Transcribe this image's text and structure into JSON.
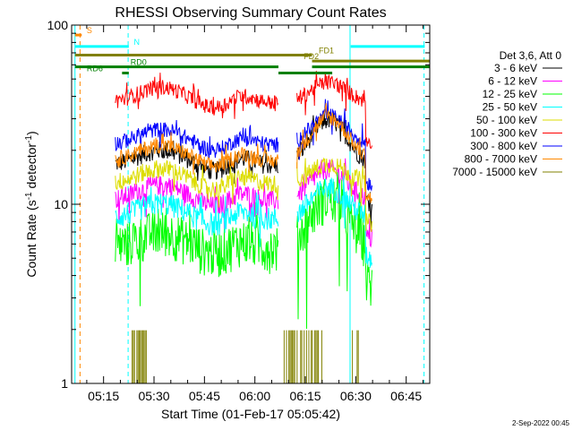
{
  "chart_data": {
    "type": "line",
    "title": "RHESSI Observing Summary Count Rates",
    "xlabel": "Start Time (01-Feb-17 05:05:42)",
    "ylabel_main": "Count Rate (s",
    "ylabel_sup1": "-1",
    "ylabel_mid": " detector",
    "ylabel_sup2": "-1",
    "ylabel_end": ")",
    "ylog": true,
    "ylim": [
      1,
      100
    ],
    "xlim_minutes": [
      5.5,
      112
    ],
    "x_ticks": [
      {
        "label": "05:15",
        "min": 15
      },
      {
        "label": "05:30",
        "min": 30
      },
      {
        "label": "05:45",
        "min": 45
      },
      {
        "label": "06:00",
        "min": 60
      },
      {
        "label": "06:15",
        "min": 75
      },
      {
        "label": "06:30",
        "min": 90
      },
      {
        "label": "06:45",
        "min": 105
      }
    ],
    "y_ticks": [
      {
        "label": "1",
        "value": 1
      },
      {
        "label": "10",
        "value": 10
      },
      {
        "label": "100",
        "value": 100
      }
    ],
    "legend_title": "Det 3,6, Att 0",
    "series": [
      {
        "name": "3 - 6 keV",
        "color": "#000000",
        "base": 16.5,
        "noise": 0.12,
        "peak": 1.8
      },
      {
        "name": "6 - 12 keV",
        "color": "#ff00ff",
        "base": 10.5,
        "noise": 0.13,
        "peak": 1.5
      },
      {
        "name": "12 - 25 keV",
        "color": "#00ff00",
        "base": 5.8,
        "noise": 0.3,
        "peak": 1.9
      },
      {
        "name": "25 - 50 keV",
        "color": "#00ffff",
        "base": 8.3,
        "noise": 0.15,
        "peak": 1.5
      },
      {
        "name": "50 - 100 keV",
        "color": "#dddd00",
        "base": 13,
        "noise": 0.12,
        "peak": 1.3
      },
      {
        "name": "100 - 300 keV",
        "color": "#ff0000",
        "base": 37,
        "noise": 0.1,
        "peak": 1.3
      },
      {
        "name": "300 - 800 keV",
        "color": "#0000ff",
        "base": 21.5,
        "noise": 0.1,
        "peak": 1.45
      },
      {
        "name": "800 - 7000 keV",
        "color": "#ff8800",
        "base": 17.5,
        "noise": 0.1,
        "peak": 1.75
      },
      {
        "name": "7000 - 15000 keV",
        "color": "#808000",
        "base": 0,
        "noise": 0,
        "peak": 0
      }
    ],
    "data_segments_minutes": [
      [
        18.5,
        67
      ],
      [
        72.5,
        95
      ]
    ],
    "olive_bursts_minutes": [
      [
        23.5,
        28
      ],
      [
        68,
        80
      ],
      [
        89,
        91
      ]
    ],
    "vertical_markers": [
      {
        "min": 6.5,
        "color": "#00ffff",
        "style": "solid"
      },
      {
        "min": 8.0,
        "color": "#ff8800",
        "style": "dashed"
      },
      {
        "min": 22.3,
        "color": "#00ffff",
        "style": "dashed"
      },
      {
        "min": 88.3,
        "color": "#00ffff",
        "style": "solid"
      },
      {
        "min": 110.3,
        "color": "#00ffff",
        "style": "dashed"
      }
    ],
    "flag_bars": [
      {
        "label": "S",
        "color": "#ff8800",
        "start": 6.5,
        "end": 8.5,
        "value": 88,
        "label_at": 10
      },
      {
        "label": "N",
        "color": "#00ffff",
        "start": 6.5,
        "end": 22.5,
        "value": 76,
        "label_at": 24
      },
      {
        "label": "N",
        "color": "#00ffff",
        "start": 88.5,
        "end": 110.5,
        "value": 76,
        "label_at": null
      },
      {
        "label": "FD1",
        "color": "#808000",
        "start": 6.5,
        "end": 77,
        "value": 68,
        "label_at": 79
      },
      {
        "label": "FD2",
        "color": "#808000",
        "start": 77,
        "end": 112,
        "value": 63,
        "label_at": 74.5
      },
      {
        "label": "RD0",
        "color": "#008000",
        "start": 6.5,
        "end": 67,
        "value": 58.5,
        "label_at": 23
      },
      {
        "label": "RD0",
        "color": "#008000",
        "start": 77,
        "end": 112,
        "value": 58.5,
        "label_at": null
      },
      {
        "label": "RD6",
        "color": "#008000",
        "start": 20.5,
        "end": 22.5,
        "value": 54,
        "label_at": 10
      },
      {
        "label": "RD6",
        "color": "#008000",
        "start": 67,
        "end": 83,
        "value": 54,
        "label_at": null
      }
    ],
    "timestamp": "2-Sep-2022 00:45"
  }
}
